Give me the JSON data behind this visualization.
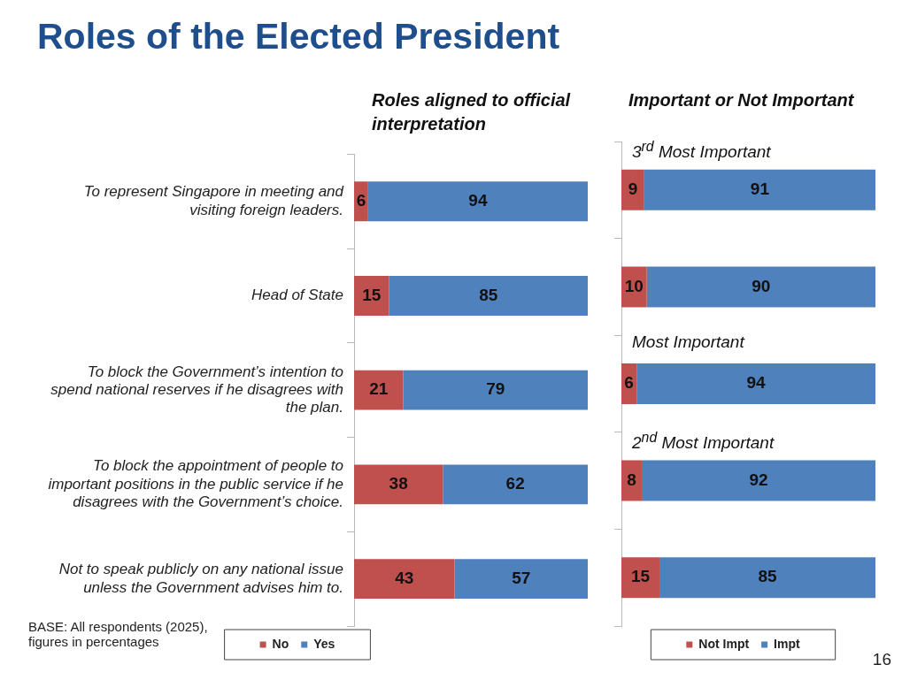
{
  "chart_data": [
    {
      "type": "bar",
      "title": "Roles of the Elected President",
      "subtitle": "Roles aligned to official interpretation",
      "orientation": "horizontal",
      "stacked": true,
      "data_labels": true,
      "legend": "bottom",
      "tick_labels": "y",
      "xlim": [
        0,
        100
      ],
      "categories": [
        "To represent Singapore in meeting and visiting foreign leaders.",
        "Head of State",
        "To block the Government’s intention to spend national reserves if he disagrees with the plan.",
        "To block the appointment of people to important positions in the public service if he disagrees with the Government’s choice.",
        "Not to speak publicly on any national issue unless the Government advises him to."
      ],
      "series": [
        {
          "name": "No",
          "color": "#c0504d",
          "values": [
            6,
            15,
            21,
            38,
            43
          ]
        },
        {
          "name": "Yes",
          "color": "#4f81bd",
          "values": [
            94,
            85,
            79,
            62,
            57
          ]
        }
      ],
      "annotations": [
        "BASE: All respondents (2025), figures in percentages",
        "16"
      ]
    },
    {
      "type": "bar",
      "subtitle": "Important or Not Important",
      "orientation": "horizontal",
      "stacked": true,
      "data_labels": true,
      "legend": "bottom",
      "tick_labels": false,
      "xlim": [
        0,
        100
      ],
      "categories": [
        null,
        null,
        null,
        null,
        null
      ],
      "series": [
        {
          "name": "Not Impt",
          "color": "#c0504d",
          "values": [
            9,
            10,
            6,
            8,
            15
          ]
        },
        {
          "name": "Impt",
          "color": "#4f81bd",
          "values": [
            91,
            90,
            94,
            92,
            85
          ]
        }
      ],
      "annotations": [
        "3$^{rd}$ Most Important",
        "Most Important",
        "2$^{nd}$ Most Important"
      ]
    }
  ]
}
